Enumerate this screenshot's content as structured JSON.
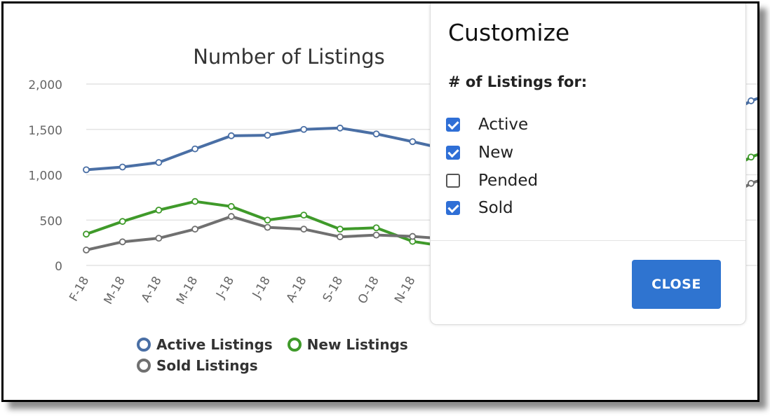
{
  "colors": {
    "active": "#4a6fa5",
    "new": "#3f9a2a",
    "sold": "#707070",
    "accent": "#2f74d0"
  },
  "chart_data": {
    "type": "line",
    "title": "Number of Listings",
    "categories": [
      "F-18",
      "M-18",
      "A-18",
      "M-18",
      "J-18",
      "J-18",
      "A-18",
      "S-18",
      "O-18",
      "N-18"
    ],
    "yticks": [
      "2,000",
      "1,500",
      "1,000",
      "500",
      "0"
    ],
    "ylim": [
      0,
      2000
    ],
    "grid": true,
    "legend_position": "bottom",
    "series": [
      {
        "name": "Active Listings",
        "color": "#4a6fa5",
        "values": [
          1055,
          1085,
          1135,
          1285,
          1430,
          1435,
          1500,
          1515,
          1450,
          1365
        ]
      },
      {
        "name": "New Listings",
        "color": "#3f9a2a",
        "values": [
          345,
          485,
          610,
          705,
          650,
          500,
          555,
          400,
          415,
          265
        ]
      },
      {
        "name": "Sold Listings",
        "color": "#707070",
        "values": [
          170,
          260,
          300,
          400,
          540,
          420,
          400,
          315,
          335,
          320
        ]
      }
    ],
    "right_edge_partial": {
      "active_end": 1815,
      "new_end": 1195,
      "sold_end": 905
    }
  },
  "panel": {
    "title": "Customize",
    "subtitle": "# of Listings for:",
    "options": [
      {
        "label": "Active",
        "checked": true
      },
      {
        "label": "New",
        "checked": true
      },
      {
        "label": "Pended",
        "checked": false
      },
      {
        "label": "Sold",
        "checked": true
      }
    ],
    "close_label": "CLOSE"
  }
}
